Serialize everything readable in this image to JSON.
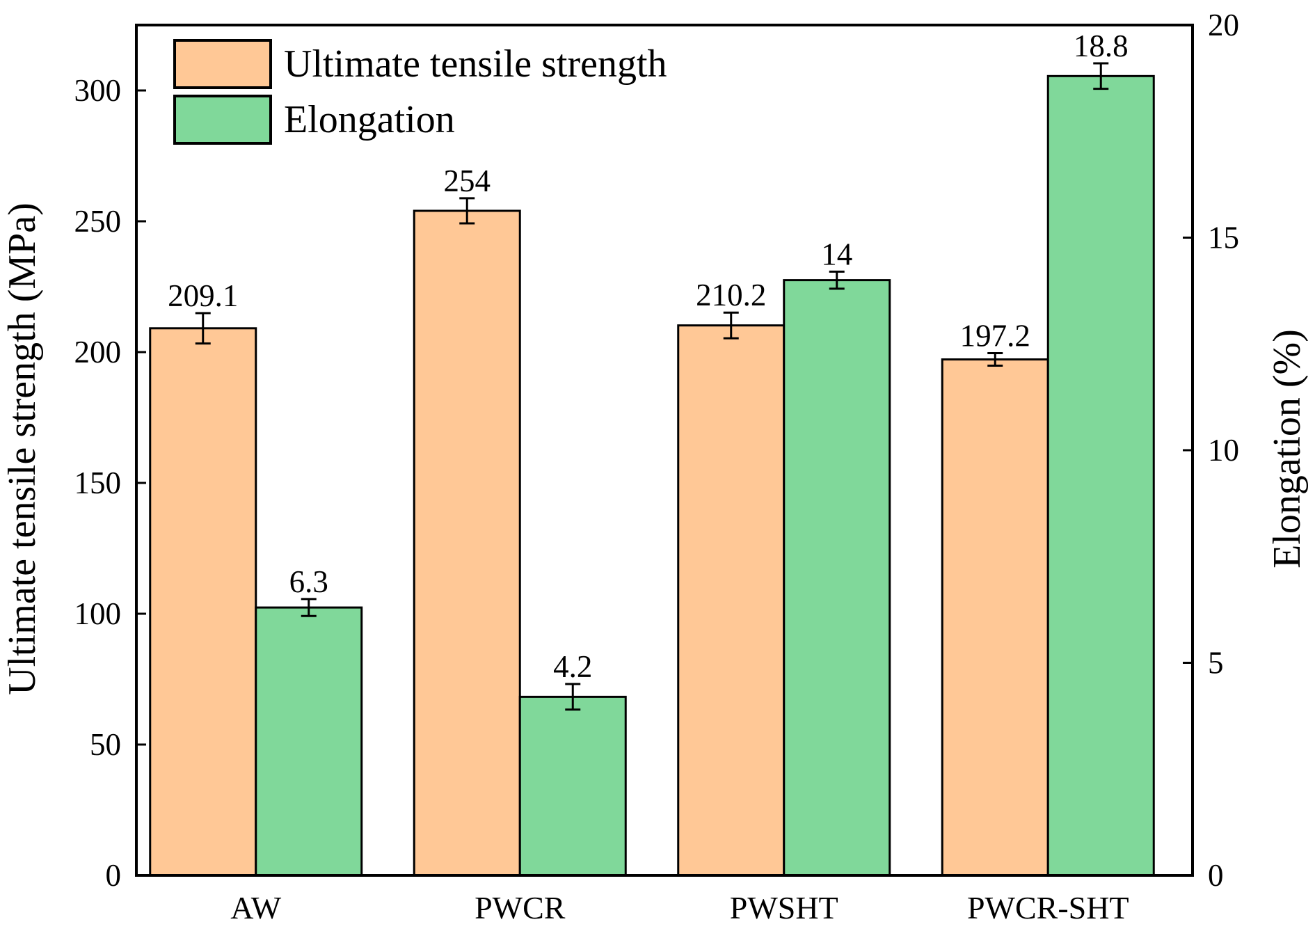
{
  "chart_data": {
    "type": "bar",
    "categories": [
      "AW",
      "PWCR",
      "PWSHT",
      "PWCR-SHT"
    ],
    "series": [
      {
        "name": "Ultimate tensile strength",
        "axis": "left",
        "color": "#FFC896",
        "values": [
          209.1,
          254,
          210.2,
          197.2
        ],
        "errors": [
          5.8,
          4.8,
          4.9,
          2.4
        ],
        "labels": [
          "209.1",
          "254",
          "210.2",
          "197.2"
        ]
      },
      {
        "name": "Elongation",
        "axis": "right",
        "color": "#80D89A",
        "values": [
          6.3,
          4.2,
          14,
          18.8
        ],
        "errors": [
          0.2,
          0.3,
          0.2,
          0.3
        ],
        "labels": [
          "6.3",
          "4.2",
          "14",
          "18.8"
        ]
      }
    ],
    "ylabel": "Ultimate tensile strength (MPa)",
    "y2label": "Elongation (%)",
    "ylim": [
      0,
      325
    ],
    "y2lim": [
      0,
      20
    ],
    "yticks": [
      0,
      50,
      100,
      150,
      200,
      250,
      300
    ],
    "y2ticks": [
      0,
      5,
      10,
      15,
      20
    ],
    "legend_position": "top-left",
    "grid": false
  }
}
